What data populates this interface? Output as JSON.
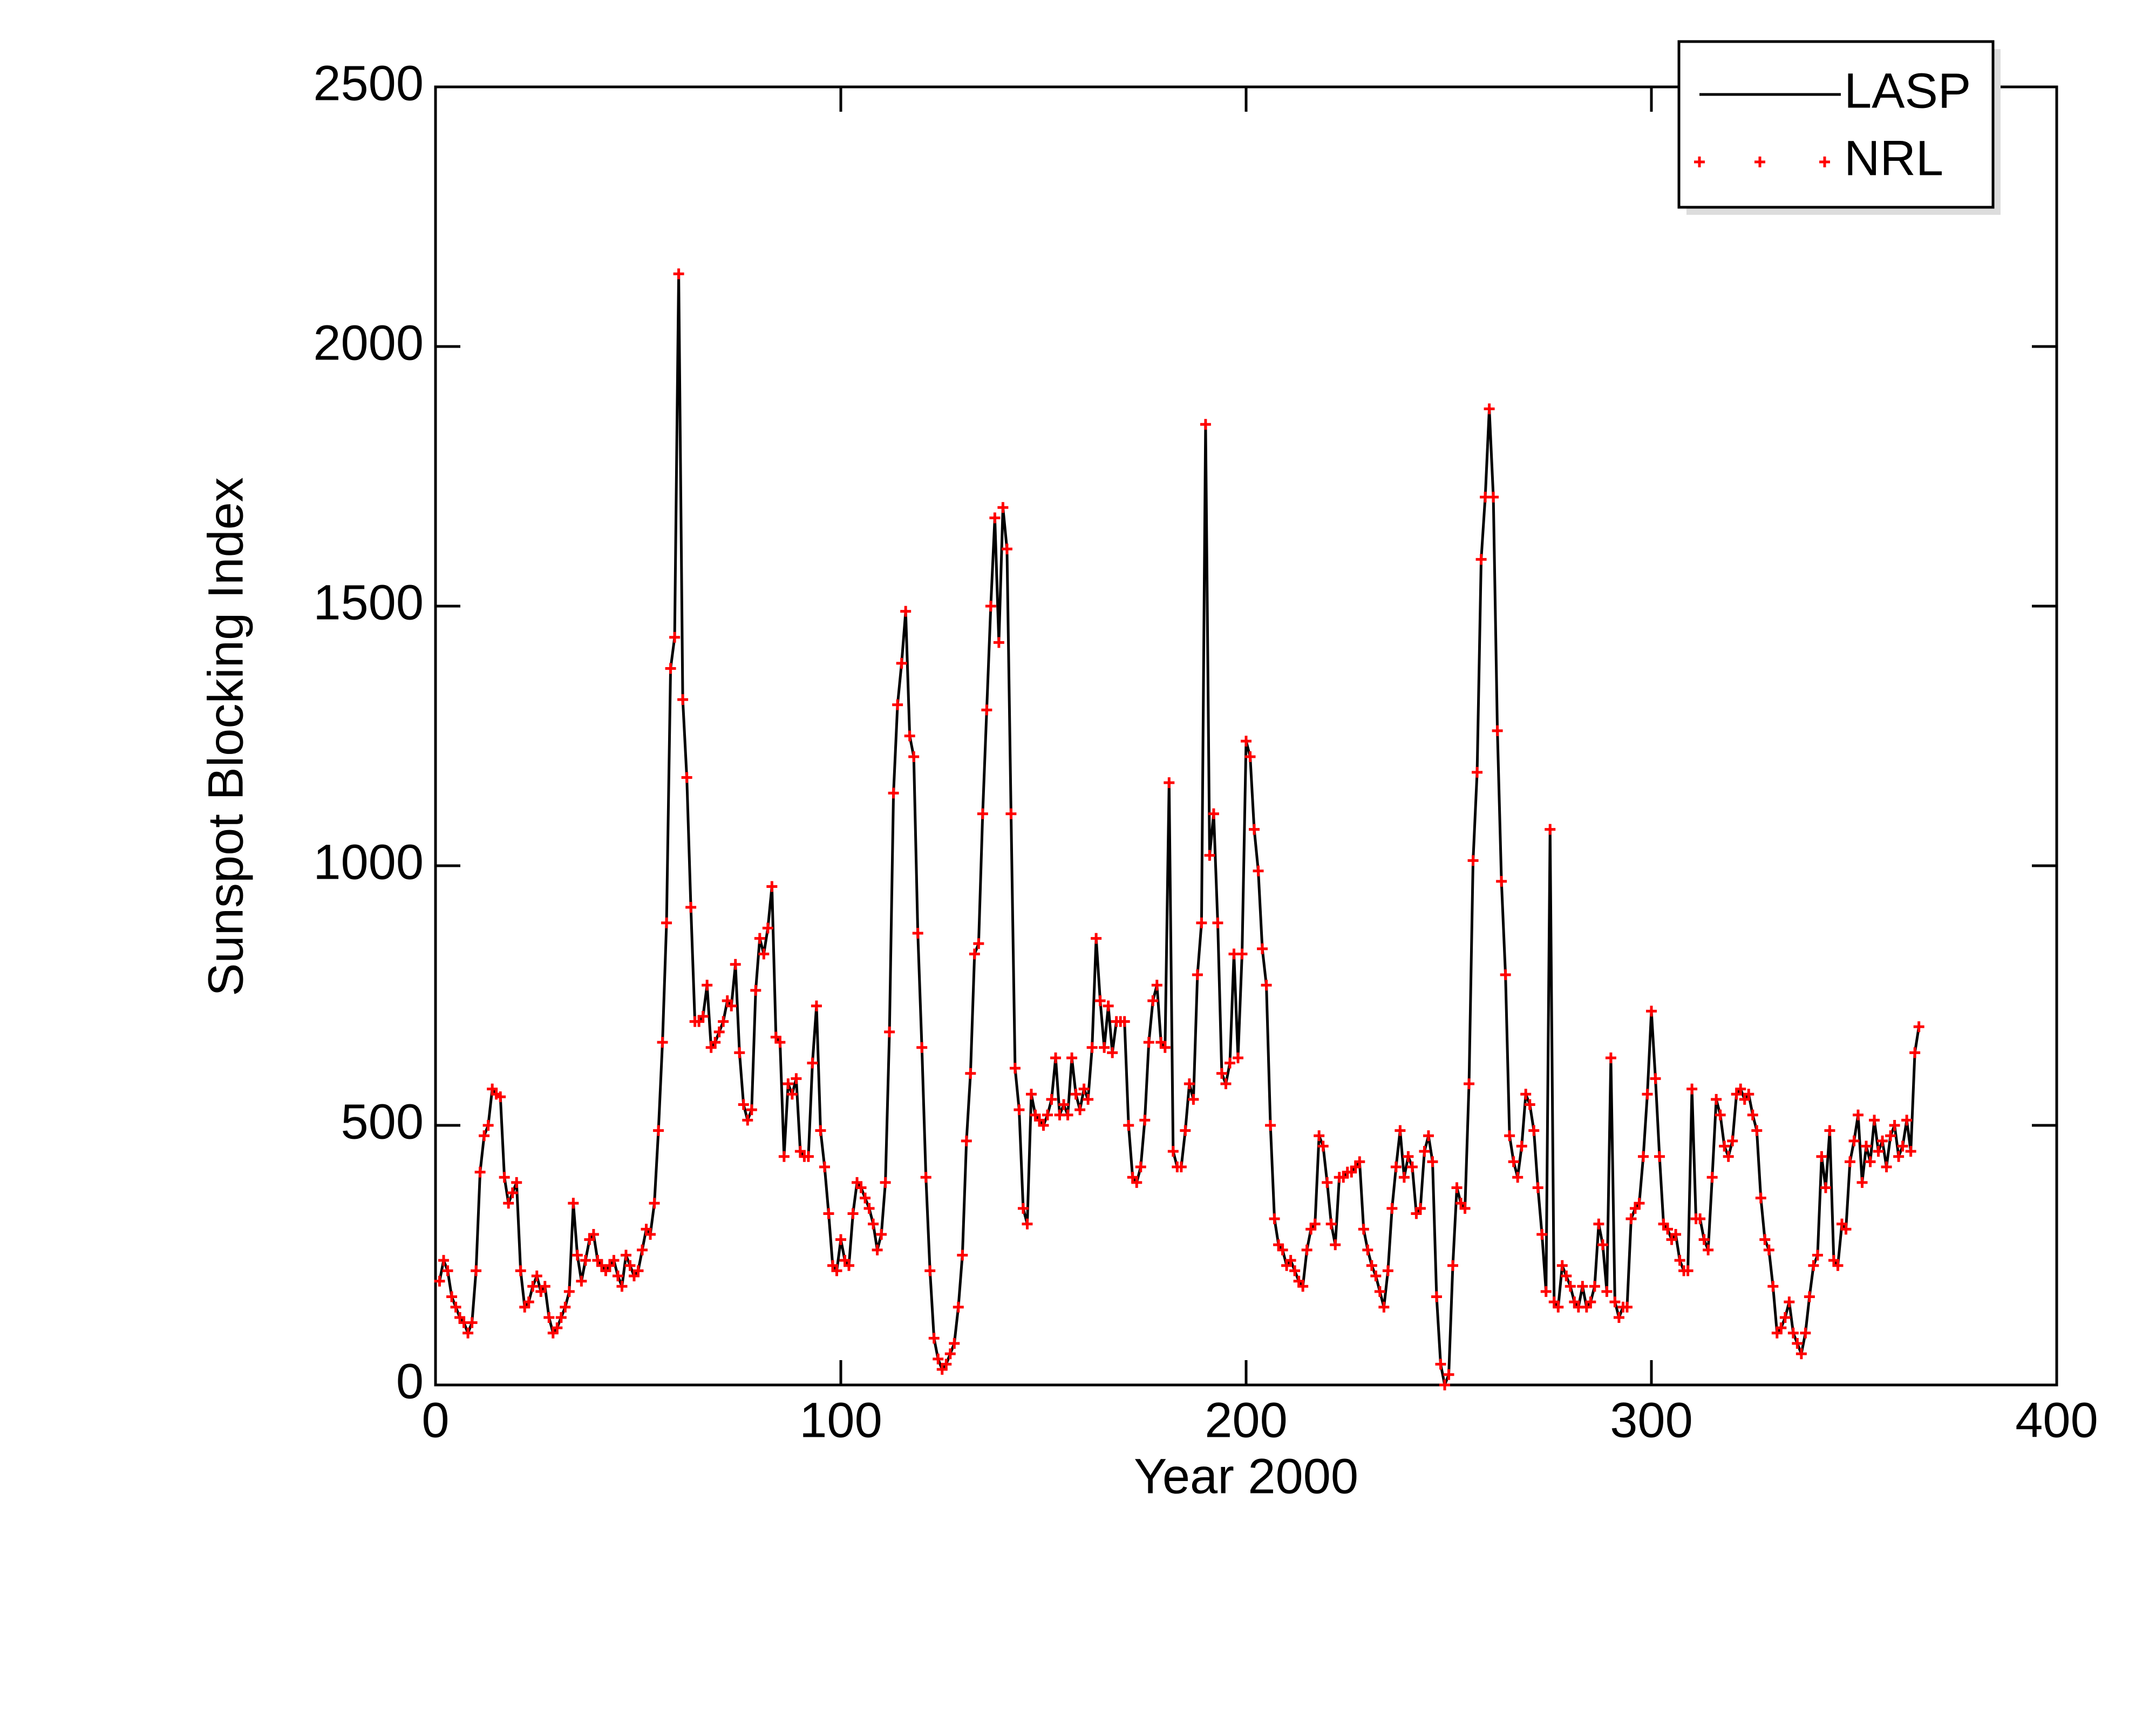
{
  "chart_data": {
    "type": "line",
    "xlabel": "Year 2000",
    "ylabel": "Sunspot Blocking Index",
    "xlim": [
      0,
      400
    ],
    "xticks": [
      0,
      100,
      200,
      300,
      400
    ],
    "ylim": [
      0,
      2500
    ],
    "yticks": [
      0,
      500,
      1000,
      1500,
      2000,
      2500
    ],
    "legend": "upper right",
    "x": [
      1,
      2,
      3,
      4,
      5,
      6,
      7,
      8,
      9,
      10,
      11,
      12,
      13,
      14,
      15,
      16,
      17,
      18,
      19,
      20,
      21,
      22,
      23,
      24,
      25,
      26,
      27,
      28,
      29,
      30,
      31,
      32,
      33,
      34,
      35,
      36,
      37,
      38,
      39,
      40,
      41,
      42,
      43,
      44,
      45,
      46,
      47,
      48,
      49,
      50,
      51,
      52,
      53,
      54,
      55,
      56,
      57,
      58,
      59,
      60,
      61,
      62,
      63,
      64,
      65,
      66,
      67,
      68,
      69,
      70,
      71,
      72,
      73,
      74,
      75,
      76,
      77,
      78,
      79,
      80,
      81,
      82,
      83,
      84,
      85,
      86,
      87,
      88,
      89,
      90,
      91,
      92,
      93,
      94,
      95,
      96,
      97,
      98,
      99,
      100,
      101,
      102,
      103,
      104,
      105,
      106,
      107,
      108,
      109,
      110,
      111,
      112,
      113,
      114,
      115,
      116,
      117,
      118,
      119,
      120,
      121,
      122,
      123,
      124,
      125,
      126,
      127,
      128,
      129,
      130,
      131,
      132,
      133,
      134,
      135,
      136,
      137,
      138,
      139,
      140,
      141,
      142,
      143,
      144,
      145,
      146,
      147,
      148,
      149,
      150,
      151,
      152,
      153,
      154,
      155,
      156,
      157,
      158,
      159,
      160,
      161,
      162,
      163,
      164,
      165,
      166,
      167,
      168,
      169,
      170,
      171,
      172,
      173,
      174,
      175,
      176,
      177,
      178,
      179,
      180,
      181,
      182,
      183,
      184,
      185,
      186,
      187,
      188,
      189,
      190,
      191,
      192,
      193,
      194,
      195,
      196,
      197,
      198,
      199,
      200,
      201,
      202,
      203,
      204,
      205,
      206,
      207,
      208,
      209,
      210,
      211,
      212,
      213,
      214,
      215,
      216,
      217,
      218,
      219,
      220,
      221,
      222,
      223,
      224,
      225,
      226,
      227,
      228,
      229,
      230,
      231,
      232,
      233,
      234,
      235,
      236,
      237,
      238,
      239,
      240,
      241,
      242,
      243,
      244,
      245,
      246,
      247,
      248,
      249,
      250,
      251,
      252,
      253,
      254,
      255,
      256,
      257,
      258,
      259,
      260,
      261,
      262,
      263,
      264,
      265,
      266,
      267,
      268,
      269,
      270,
      271,
      272,
      273,
      274,
      275,
      276,
      277,
      278,
      279,
      280,
      281,
      282,
      283,
      284,
      285,
      286,
      287,
      288,
      289,
      290,
      291,
      292,
      293,
      294,
      295,
      296,
      297,
      298,
      299,
      300,
      301,
      302,
      303,
      304,
      305,
      306,
      307,
      308,
      309,
      310,
      311,
      312,
      313,
      314,
      315,
      316,
      317,
      318,
      319,
      320,
      321,
      322,
      323,
      324,
      325,
      326,
      327,
      328,
      329,
      330,
      331,
      332,
      333,
      334,
      335,
      336,
      337,
      338,
      339,
      340,
      341,
      342,
      343,
      344,
      345,
      346,
      347,
      348,
      349,
      350,
      351,
      352,
      353,
      354,
      355,
      356,
      357,
      358,
      359,
      360,
      361,
      362,
      363,
      364,
      365,
      366
    ],
    "series": [
      {
        "name": "LASP",
        "color": "#000000",
        "values": [
          200,
          240,
          220,
          170,
          150,
          130,
          120,
          100,
          120,
          220,
          410,
          480,
          500,
          570,
          560,
          555,
          400,
          350,
          370,
          390,
          220,
          150,
          160,
          190,
          210,
          180,
          190,
          130,
          100,
          110,
          130,
          150,
          180,
          350,
          250,
          200,
          240,
          280,
          290,
          240,
          230,
          220,
          230,
          240,
          210,
          190,
          250,
          230,
          210,
          220,
          260,
          300,
          290,
          350,
          490,
          660,
          890,
          1380,
          1440,
          2140,
          1320,
          1170,
          920,
          700,
          700,
          710,
          770,
          650,
          660,
          680,
          700,
          740,
          730,
          810,
          640,
          540,
          510,
          530,
          760,
          860,
          830,
          880,
          960,
          670,
          660,
          440,
          580,
          560,
          590,
          450,
          440,
          440,
          620,
          730,
          490,
          420,
          330,
          230,
          220,
          280,
          240,
          230,
          330,
          390,
          380,
          360,
          340,
          310,
          260,
          290,
          390,
          680,
          1140,
          1310,
          1390,
          1490,
          1250,
          1210,
          870,
          650,
          400,
          220,
          90,
          50,
          30,
          40,
          60,
          80,
          150,
          250,
          470,
          600,
          830,
          850,
          1100,
          1300,
          1500,
          1670,
          1430,
          1690,
          1610,
          1100,
          610,
          530,
          340,
          310,
          560,
          520,
          510,
          500,
          520,
          550,
          630,
          520,
          540,
          520,
          630,
          560,
          530,
          570,
          550,
          650,
          860,
          740,
          650,
          730,
          640,
          700,
          700,
          700,
          500,
          400,
          390,
          420,
          510,
          660,
          740,
          770,
          660,
          650,
          1160,
          450,
          420,
          420,
          490,
          580,
          550,
          790,
          890,
          1850,
          1020,
          1100,
          890,
          600,
          580,
          620,
          830,
          630,
          830,
          1240,
          1210,
          1070,
          990,
          840,
          770,
          500,
          320,
          270,
          260,
          230,
          240,
          220,
          200,
          190,
          260,
          300,
          310,
          480,
          460,
          390,
          310,
          270,
          400,
          400,
          410,
          410,
          420,
          430,
          300,
          260,
          230,
          210,
          180,
          150,
          220,
          340,
          420,
          490,
          400,
          440,
          420,
          330,
          340,
          450,
          480,
          430,
          170,
          40,
          0,
          20,
          230,
          380,
          350,
          340,
          580,
          1010,
          1180,
          1590,
          1710,
          1880,
          1710,
          1260,
          970,
          790,
          480,
          430,
          400,
          460,
          560,
          540,
          490,
          380,
          290,
          180,
          1070,
          160,
          150,
          230,
          210,
          190,
          160,
          150,
          190,
          150,
          160,
          190,
          310,
          270,
          180,
          630,
          160,
          130,
          150,
          150,
          320,
          340,
          350,
          440,
          560,
          720,
          590,
          440,
          310,
          300,
          280,
          290,
          240,
          220,
          220,
          570,
          320,
          320,
          280,
          260,
          400,
          550,
          520,
          460,
          440,
          470,
          560,
          570,
          550,
          560,
          520,
          490,
          360,
          280,
          260,
          190,
          100,
          110,
          130,
          160,
          100,
          80,
          60,
          100,
          170,
          230,
          250,
          440,
          380,
          490,
          240,
          230,
          310,
          300,
          430,
          470,
          520,
          390,
          460,
          430,
          510,
          450,
          470,
          420,
          480,
          500,
          440,
          460,
          510,
          450,
          640,
          690
        ]
      },
      {
        "name": "NRL",
        "color": "#ff0000",
        "values": [
          200,
          240,
          220,
          170,
          150,
          130,
          120,
          100,
          120,
          220,
          410,
          480,
          500,
          570,
          560,
          555,
          400,
          350,
          370,
          390,
          220,
          150,
          160,
          190,
          210,
          180,
          190,
          130,
          100,
          110,
          130,
          150,
          180,
          350,
          250,
          200,
          240,
          280,
          290,
          240,
          230,
          220,
          230,
          240,
          210,
          190,
          250,
          230,
          210,
          220,
          260,
          300,
          290,
          350,
          490,
          660,
          890,
          1380,
          1440,
          2140,
          1320,
          1170,
          920,
          700,
          700,
          710,
          770,
          650,
          660,
          680,
          700,
          740,
          730,
          810,
          640,
          540,
          510,
          530,
          760,
          860,
          830,
          880,
          960,
          670,
          660,
          440,
          580,
          560,
          590,
          450,
          440,
          440,
          620,
          730,
          490,
          420,
          330,
          230,
          220,
          280,
          240,
          230,
          330,
          390,
          380,
          360,
          340,
          310,
          260,
          290,
          390,
          680,
          1140,
          1310,
          1390,
          1490,
          1250,
          1210,
          870,
          650,
          400,
          220,
          90,
          50,
          30,
          40,
          60,
          80,
          150,
          250,
          470,
          600,
          830,
          850,
          1100,
          1300,
          1500,
          1670,
          1430,
          1690,
          1610,
          1100,
          610,
          530,
          340,
          310,
          560,
          520,
          510,
          500,
          520,
          550,
          630,
          520,
          540,
          520,
          630,
          560,
          530,
          570,
          550,
          650,
          860,
          740,
          650,
          730,
          640,
          700,
          700,
          700,
          500,
          400,
          390,
          420,
          510,
          660,
          740,
          770,
          660,
          650,
          1160,
          450,
          420,
          420,
          490,
          580,
          550,
          790,
          890,
          1850,
          1020,
          1100,
          890,
          600,
          580,
          620,
          830,
          630,
          830,
          1240,
          1210,
          1070,
          990,
          840,
          770,
          500,
          320,
          270,
          260,
          230,
          240,
          220,
          200,
          190,
          260,
          300,
          310,
          480,
          460,
          390,
          310,
          270,
          400,
          400,
          410,
          410,
          420,
          430,
          300,
          260,
          230,
          210,
          180,
          150,
          220,
          340,
          420,
          490,
          400,
          440,
          420,
          330,
          340,
          450,
          480,
          430,
          170,
          40,
          0,
          20,
          230,
          380,
          350,
          340,
          580,
          1010,
          1180,
          1590,
          1710,
          1880,
          1710,
          1260,
          970,
          790,
          480,
          430,
          400,
          460,
          560,
          540,
          490,
          380,
          290,
          180,
          1070,
          160,
          150,
          230,
          210,
          190,
          160,
          150,
          190,
          150,
          160,
          190,
          310,
          270,
          180,
          630,
          160,
          130,
          150,
          150,
          320,
          340,
          350,
          440,
          560,
          720,
          590,
          440,
          310,
          300,
          280,
          290,
          240,
          220,
          220,
          570,
          320,
          320,
          280,
          260,
          400,
          550,
          520,
          460,
          440,
          470,
          560,
          570,
          550,
          560,
          520,
          490,
          360,
          280,
          260,
          190,
          100,
          110,
          130,
          160,
          100,
          80,
          60,
          100,
          170,
          230,
          250,
          440,
          380,
          490,
          240,
          230,
          310,
          300,
          430,
          470,
          520,
          390,
          460,
          430,
          510,
          450,
          470,
          420,
          480,
          500,
          440,
          460,
          510,
          450,
          640,
          690
        ]
      }
    ]
  }
}
